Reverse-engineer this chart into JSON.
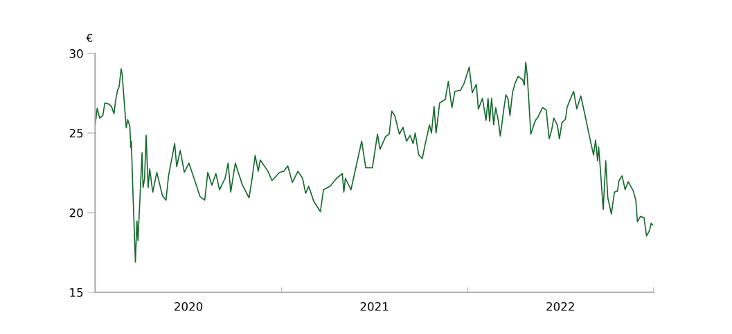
{
  "chart_data": {
    "type": "line",
    "ylabel": "€",
    "ylim": [
      15,
      30
    ],
    "yticks": [
      15,
      20,
      25,
      30
    ],
    "xlim": [
      "2020-01-01",
      "2023-01-01"
    ],
    "xticks": [
      {
        "value": "2020-01-01",
        "label": null
      },
      {
        "value": "2020-07-02",
        "label": "2020"
      },
      {
        "value": "2021-01-01",
        "label": null
      },
      {
        "value": "2021-07-02",
        "label": "2021"
      },
      {
        "value": "2022-01-01",
        "label": null
      },
      {
        "value": "2022-07-02",
        "label": "2022"
      },
      {
        "value": "2023-01-01",
        "label": null
      }
    ],
    "grid": false,
    "legend": false,
    "marker": "none",
    "line_style": "solid",
    "x": [
      "2020-01-01",
      "2020-01-05",
      "2020-01-08",
      "2020-01-10",
      "2020-01-16",
      "2020-01-20",
      "2020-01-28",
      "2020-02-02",
      "2020-02-07",
      "2020-02-10",
      "2020-02-14",
      "2020-02-17",
      "2020-02-21",
      "2020-02-23",
      "2020-02-26",
      "2020-03-02",
      "2020-03-05",
      "2020-03-09",
      "2020-03-11",
      "2020-03-12",
      "2020-03-15",
      "2020-03-20",
      "2020-03-23",
      "2020-03-25",
      "2020-03-27",
      "2020-04-02",
      "2020-04-04",
      "2020-04-07",
      "2020-04-10",
      "2020-04-14",
      "2020-04-17",
      "2020-04-23",
      "2020-05-01",
      "2020-05-12",
      "2020-05-19",
      "2020-05-24",
      "2020-06-05",
      "2020-06-09",
      "2020-06-16",
      "2020-06-24",
      "2020-07-03",
      "2020-07-13",
      "2020-07-25",
      "2020-08-03",
      "2020-08-09",
      "2020-08-17",
      "2020-08-25",
      "2020-09-01",
      "2020-09-12",
      "2020-09-18",
      "2020-09-23",
      "2020-10-02",
      "2020-10-16",
      "2020-10-29",
      "2020-11-04",
      "2020-11-10",
      "2020-11-16",
      "2020-11-20",
      "2020-12-05",
      "2020-12-13",
      "2020-12-28",
      "2021-01-05",
      "2021-01-13",
      "2021-01-22",
      "2021-02-02",
      "2021-02-11",
      "2021-02-17",
      "2021-02-23",
      "2021-03-05",
      "2021-03-18",
      "2021-03-24",
      "2021-04-06",
      "2021-04-19",
      "2021-04-30",
      "2021-05-03",
      "2021-05-06",
      "2021-05-17",
      "2021-05-28",
      "2021-06-07",
      "2021-06-15",
      "2021-06-28",
      "2021-07-08",
      "2021-07-13",
      "2021-07-24",
      "2021-07-31",
      "2021-08-05",
      "2021-08-11",
      "2021-08-20",
      "2021-08-27",
      "2021-09-03",
      "2021-09-10",
      "2021-09-16",
      "2021-09-20",
      "2021-09-27",
      "2021-10-04",
      "2021-10-09",
      "2021-10-18",
      "2021-10-22",
      "2021-10-27",
      "2021-10-31",
      "2021-11-07",
      "2021-11-18",
      "2021-11-24",
      "2021-12-01",
      "2021-12-07",
      "2021-12-18",
      "2021-12-25",
      "2022-01-04",
      "2022-01-10",
      "2022-01-18",
      "2022-01-22",
      "2022-01-30",
      "2022-02-06",
      "2022-02-10",
      "2022-02-13",
      "2022-02-17",
      "2022-02-21",
      "2022-02-25",
      "2022-03-02",
      "2022-03-06",
      "2022-03-13",
      "2022-03-17",
      "2022-03-21",
      "2022-03-25",
      "2022-03-30",
      "2022-04-04",
      "2022-04-10",
      "2022-04-19",
      "2022-04-22",
      "2022-04-25",
      "2022-04-28",
      "2022-05-05",
      "2022-05-10",
      "2022-05-14",
      "2022-05-18",
      "2022-05-28",
      "2022-06-04",
      "2022-06-10",
      "2022-06-15",
      "2022-06-19",
      "2022-06-26",
      "2022-06-30",
      "2022-07-05",
      "2022-07-12",
      "2022-07-15",
      "2022-07-22",
      "2022-07-28",
      "2022-08-03",
      "2022-08-11",
      "2022-08-21",
      "2022-08-27",
      "2022-09-01",
      "2022-09-05",
      "2022-09-09",
      "2022-09-13",
      "2022-09-15",
      "2022-09-18",
      "2022-09-24",
      "2022-09-29",
      "2022-10-03",
      "2022-10-10",
      "2022-10-16",
      "2022-10-22",
      "2022-10-25",
      "2022-10-31",
      "2022-11-06",
      "2022-11-12",
      "2022-11-22",
      "2022-11-27",
      "2022-11-30",
      "2022-12-06",
      "2022-12-13",
      "2022-12-18",
      "2022-12-24",
      "2022-12-27",
      "2022-12-30"
    ],
    "series": [
      {
        "color": "#17692f",
        "values": [
          25.51,
          26.55,
          26.16,
          25.94,
          26.09,
          26.89,
          26.82,
          26.67,
          26.21,
          27.03,
          27.69,
          27.91,
          29.03,
          28.7,
          27.4,
          25.33,
          25.83,
          25.43,
          24.08,
          24.49,
          21.36,
          16.9,
          19.47,
          18.24,
          19.62,
          23.76,
          21.58,
          22.16,
          24.85,
          21.58,
          22.75,
          21.29,
          22.53,
          21.07,
          20.78,
          22.31,
          24.34,
          22.89,
          23.91,
          22.53,
          23.11,
          22.16,
          21.0,
          20.78,
          22.53,
          21.73,
          22.45,
          21.44,
          22.16,
          23.11,
          21.29,
          23.11,
          21.73,
          20.93,
          22.16,
          23.59,
          22.6,
          23.3,
          22.6,
          22.02,
          22.53,
          22.6,
          22.93,
          21.9,
          22.6,
          22.16,
          21.22,
          21.66,
          20.71,
          20.06,
          21.44,
          21.66,
          22.16,
          22.45,
          21.29,
          22.16,
          21.44,
          23.04,
          24.49,
          22.82,
          22.82,
          24.93,
          23.98,
          24.78,
          24.93,
          26.38,
          26.09,
          24.93,
          25.36,
          24.49,
          24.85,
          24.34,
          25.0,
          23.62,
          23.4,
          24.2,
          25.51,
          25.0,
          26.67,
          25.0,
          26.89,
          27.11,
          28.24,
          26.6,
          27.62,
          27.69,
          28.12,
          29.14,
          27.54,
          28.05,
          26.5,
          27.18,
          25.8,
          27.18,
          25.73,
          27.18,
          25.51,
          26.6,
          25.8,
          24.81,
          26.52,
          27.4,
          27.18,
          26.09,
          27.54,
          28.12,
          28.56,
          28.34,
          28.01,
          29.46,
          28.56,
          24.93,
          25.43,
          25.8,
          25.94,
          26.6,
          26.45,
          24.64,
          25.22,
          25.94,
          25.51,
          24.64,
          25.65,
          25.87,
          26.6,
          27.18,
          27.62,
          26.52,
          27.33,
          25.87,
          24.93,
          24.2,
          23.62,
          24.56,
          23.25,
          24.13,
          22.89,
          20.2,
          23.25,
          20.93,
          19.91,
          21.29,
          21.36,
          22.02,
          22.31,
          21.44,
          21.95,
          21.36,
          20.78,
          19.43,
          19.76,
          19.69,
          18.53,
          18.89,
          19.33,
          19.23
        ]
      }
    ]
  }
}
